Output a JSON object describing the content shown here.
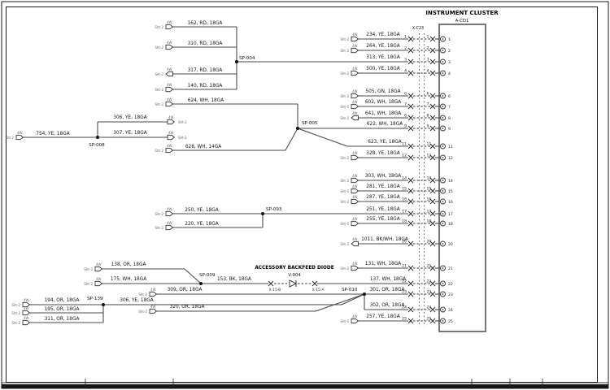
{
  "cluster": {
    "title": "INSTRUMENT CLUSTER",
    "id": "A-CD1"
  },
  "connector": {
    "label": "X-C23",
    "pins": [
      "1",
      "2",
      "3",
      "4",
      "6",
      "7",
      "8",
      "9",
      "11",
      "12",
      "14",
      "15",
      "16",
      "17",
      "18",
      "20",
      "21",
      "22",
      "23",
      "24",
      "25"
    ]
  },
  "splices": {
    "sp004": "SP-004",
    "sp005": "SP-005",
    "sp008": "SP-008",
    "sp009": "SP-009",
    "sp010": "SP-010",
    "sp093": "SP-093",
    "sp139": "SP-139"
  },
  "diode": {
    "title": "ACCESSORY BACKFEED DIODE",
    "id": "V-004",
    "left_conn": "X-15-B",
    "right_conn": "X-15-A"
  },
  "wires": {
    "w162": "162, RD, 18GA",
    "w310": "310, RD, 18GA",
    "w317": "317, RD, 18GA",
    "w140": "140, RD, 18GA",
    "w624": "624, WH, 18GA",
    "w628": "628, WH, 14GA",
    "w754": "754, YE, 18GA",
    "w306a": "306, YE, 18GA",
    "w307": "307, YE, 18GA",
    "w250": "250, YE, 18GA",
    "w220": "220, YE, 18GA",
    "w138": "138, OR, 18GA",
    "w175": "175, WH, 18GA",
    "w153": "153, BK, 18GA",
    "w309": "309, OR, 18GA",
    "w320": "320, OR, 18GA",
    "w194": "194, OR, 18GA",
    "w195": "195, OR, 18GA",
    "w311": "311, OR, 18GA",
    "w306b": "306, YE, 18GA",
    "w234": "234, YE, 18GA",
    "w264": "264, YE, 18GA",
    "w313": "313, YE, 18GA",
    "w500": "500, YE, 18GA",
    "w505": "505, GN, 18GA",
    "w602": "602, WH, 18GA",
    "w641": "641, WH, 18GA",
    "w622": "622, WH, 18GA",
    "w623": "623, YE, 18GA",
    "w328": "328, YE, 18GA",
    "w303": "303, WH, 18GA",
    "w281": "281, YE, 18GA",
    "w287": "287, YE, 18GA",
    "w251": "251, YE, 18GA",
    "w255": "255, YE, 18GA",
    "w1011": "1011, BK/WH, 18GA",
    "w131": "131, WH, 18GA",
    "w137": "137, WH, 18GA",
    "w301": "301, OR, 18GA",
    "w302": "302, OR, 18GA",
    "w257": "257, YE, 18GA"
  },
  "terminal_refs": {
    "sheet": "Sht-2",
    "code": "4W"
  },
  "colors": {
    "line": "#4a4a4a",
    "ink": "#111111",
    "background": "#ffffff"
  }
}
